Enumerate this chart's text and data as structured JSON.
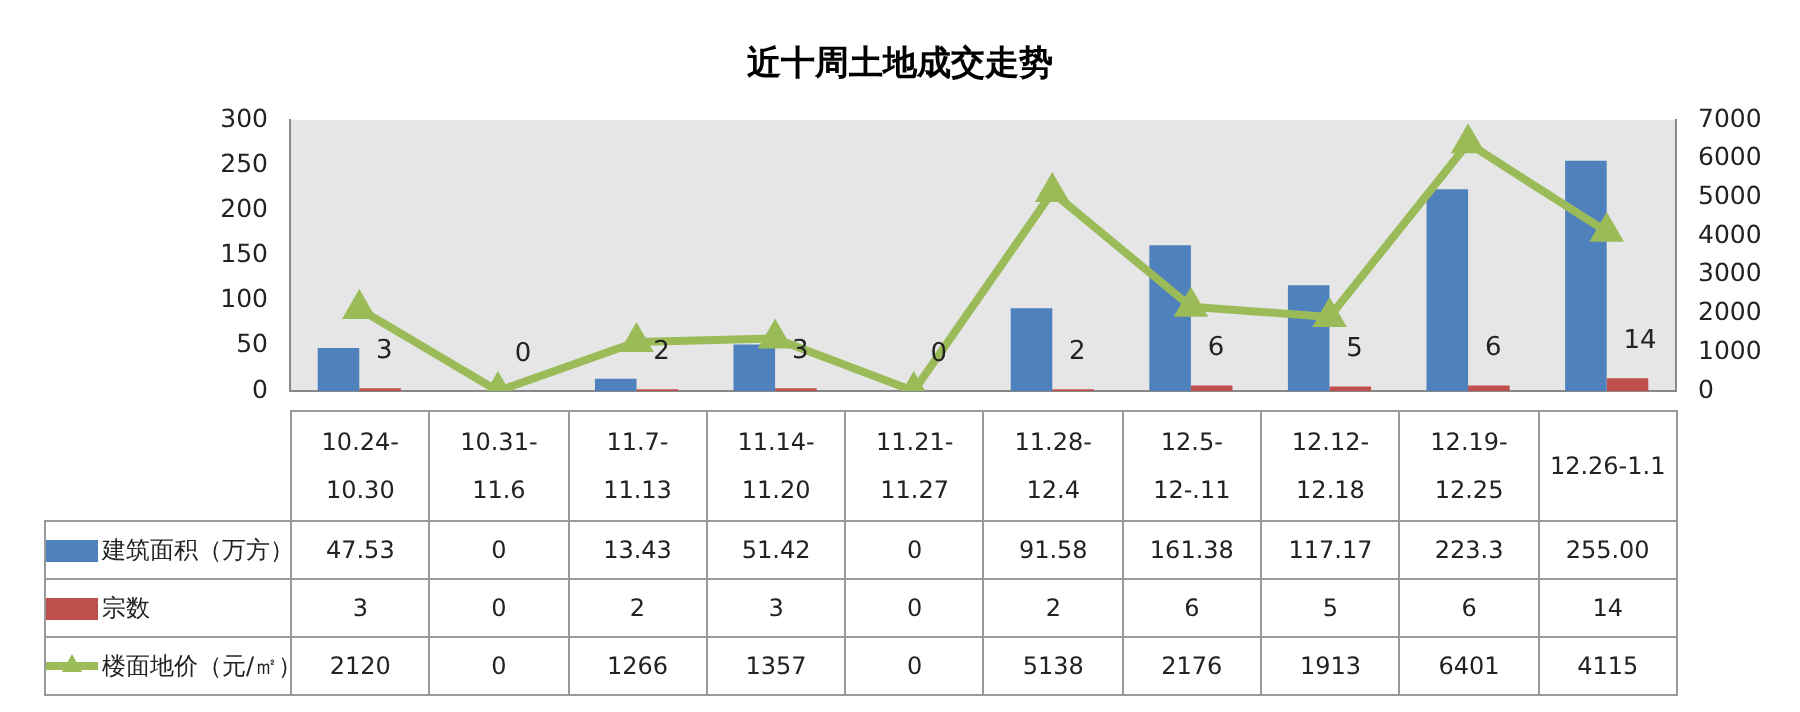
{
  "chart_data": {
    "type": "bar",
    "title": "近十周土地成交走势",
    "categories": [
      "10.24-10.30",
      "10.31-11.6",
      "11.7-11.13",
      "11.14-11.20",
      "11.21-11.27",
      "11.28-12.4",
      "12.5-12-.11",
      "12.12-12.18",
      "12.19-12.25",
      "12.26-1.1"
    ],
    "series": [
      {
        "name": "建筑面积（万方）",
        "color": "#4f81bd",
        "values": [
          47.53,
          0,
          13.43,
          51.42,
          0,
          91.58,
          161.38,
          117.17,
          223.3,
          255
        ],
        "value_labels": [
          "47.53",
          "0",
          "13.43",
          "51.42",
          "0",
          "91.58",
          "161.38",
          "117.17",
          "223.3",
          "255.00"
        ]
      },
      {
        "name": "宗数",
        "color": "#c0504d",
        "values": [
          3,
          0,
          2,
          3,
          0,
          2,
          6,
          5,
          6,
          14
        ],
        "value_labels": [
          "3",
          "0",
          "2",
          "3",
          "0",
          "2",
          "6",
          "5",
          "6",
          "14"
        ],
        "data_labels": true
      },
      {
        "name": "楼面地价（元/㎡）",
        "type": "line",
        "axis": "y2",
        "color": "#9bbb59",
        "values": [
          2120,
          0,
          1266,
          1357,
          0,
          5138,
          2176,
          1913,
          6401,
          4115
        ],
        "value_labels": [
          "2120",
          "0",
          "1266",
          "1357",
          "0",
          "5138",
          "2176",
          "1913",
          "6401",
          "4115"
        ]
      }
    ],
    "ylim": [
      0,
      300
    ],
    "yticks": [
      0,
      50,
      100,
      150,
      200,
      250,
      300
    ],
    "y2lim": [
      0,
      7000
    ],
    "y2ticks": [
      0,
      1000,
      2000,
      3000,
      4000,
      5000,
      6000,
      7000
    ],
    "grid": false,
    "legend": "bottom",
    "marker": "triangle",
    "line_style": "solid"
  }
}
